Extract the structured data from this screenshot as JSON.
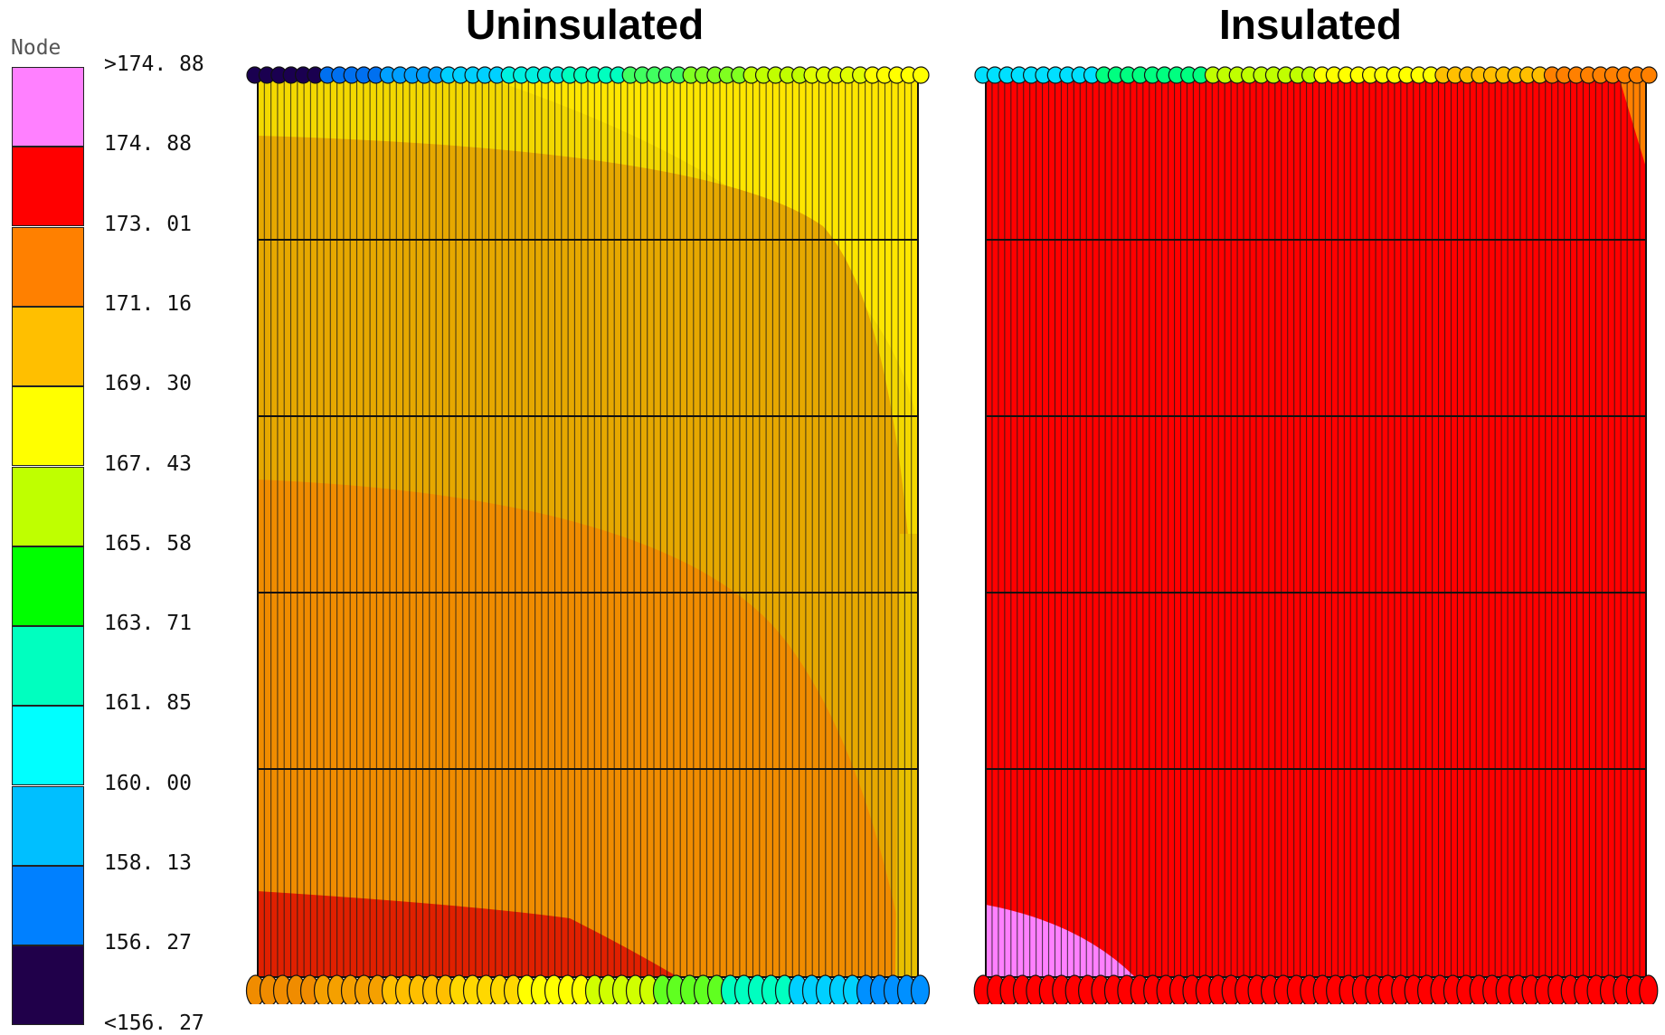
{
  "legend": {
    "title": "Node",
    "ticks": [
      ">174. 88",
      "174. 88",
      "173. 01",
      "171. 16",
      "169. 30",
      "167. 43",
      "165. 58",
      "163. 71",
      "161. 85",
      "160. 00",
      "158. 13",
      "156. 27",
      "<156. 27"
    ],
    "colors": [
      "#FF80FF",
      "#FF0000",
      "#FF8000",
      "#FFBF00",
      "#FFFF00",
      "#BFFF00",
      "#00FF00",
      "#00FFBF",
      "#00FFFF",
      "#00BFFF",
      "#0080FF",
      "#20004A"
    ]
  },
  "panels": [
    {
      "title": "Uninsulated",
      "colors": {
        "upper": "#F3D800",
        "upper_right": "#FFE800",
        "mid": "#F08C00",
        "arc": "#E6A800",
        "lower": "#E02000",
        "right_strip": "#E8C000"
      },
      "top_ring": [
        "#1A0050",
        "#0070F0",
        "#00A0FF",
        "#00D0FF",
        "#00F0E0",
        "#00FFBF",
        "#40FF60",
        "#80FF20",
        "#C0FF00",
        "#E0FF00",
        "#FFFF00"
      ],
      "bottom_ring": [
        "#F08C00",
        "#F5A000",
        "#FFBF00",
        "#FFD800",
        "#FFFF00",
        "#D0FF00",
        "#60FF20",
        "#00FFC0",
        "#00D0FF",
        "#0090FF"
      ]
    },
    {
      "title": "Insulated",
      "colors": {
        "body": "#FF0000",
        "corner_patch": "#FF80FF",
        "top_right": "#FF8000"
      },
      "top_ring": [
        "#00E0FF",
        "#00FF80",
        "#C0FF00",
        "#FFFF00",
        "#FFBF00",
        "#FF8000"
      ],
      "bottom_ring": [
        "#FF0000"
      ]
    }
  ]
}
